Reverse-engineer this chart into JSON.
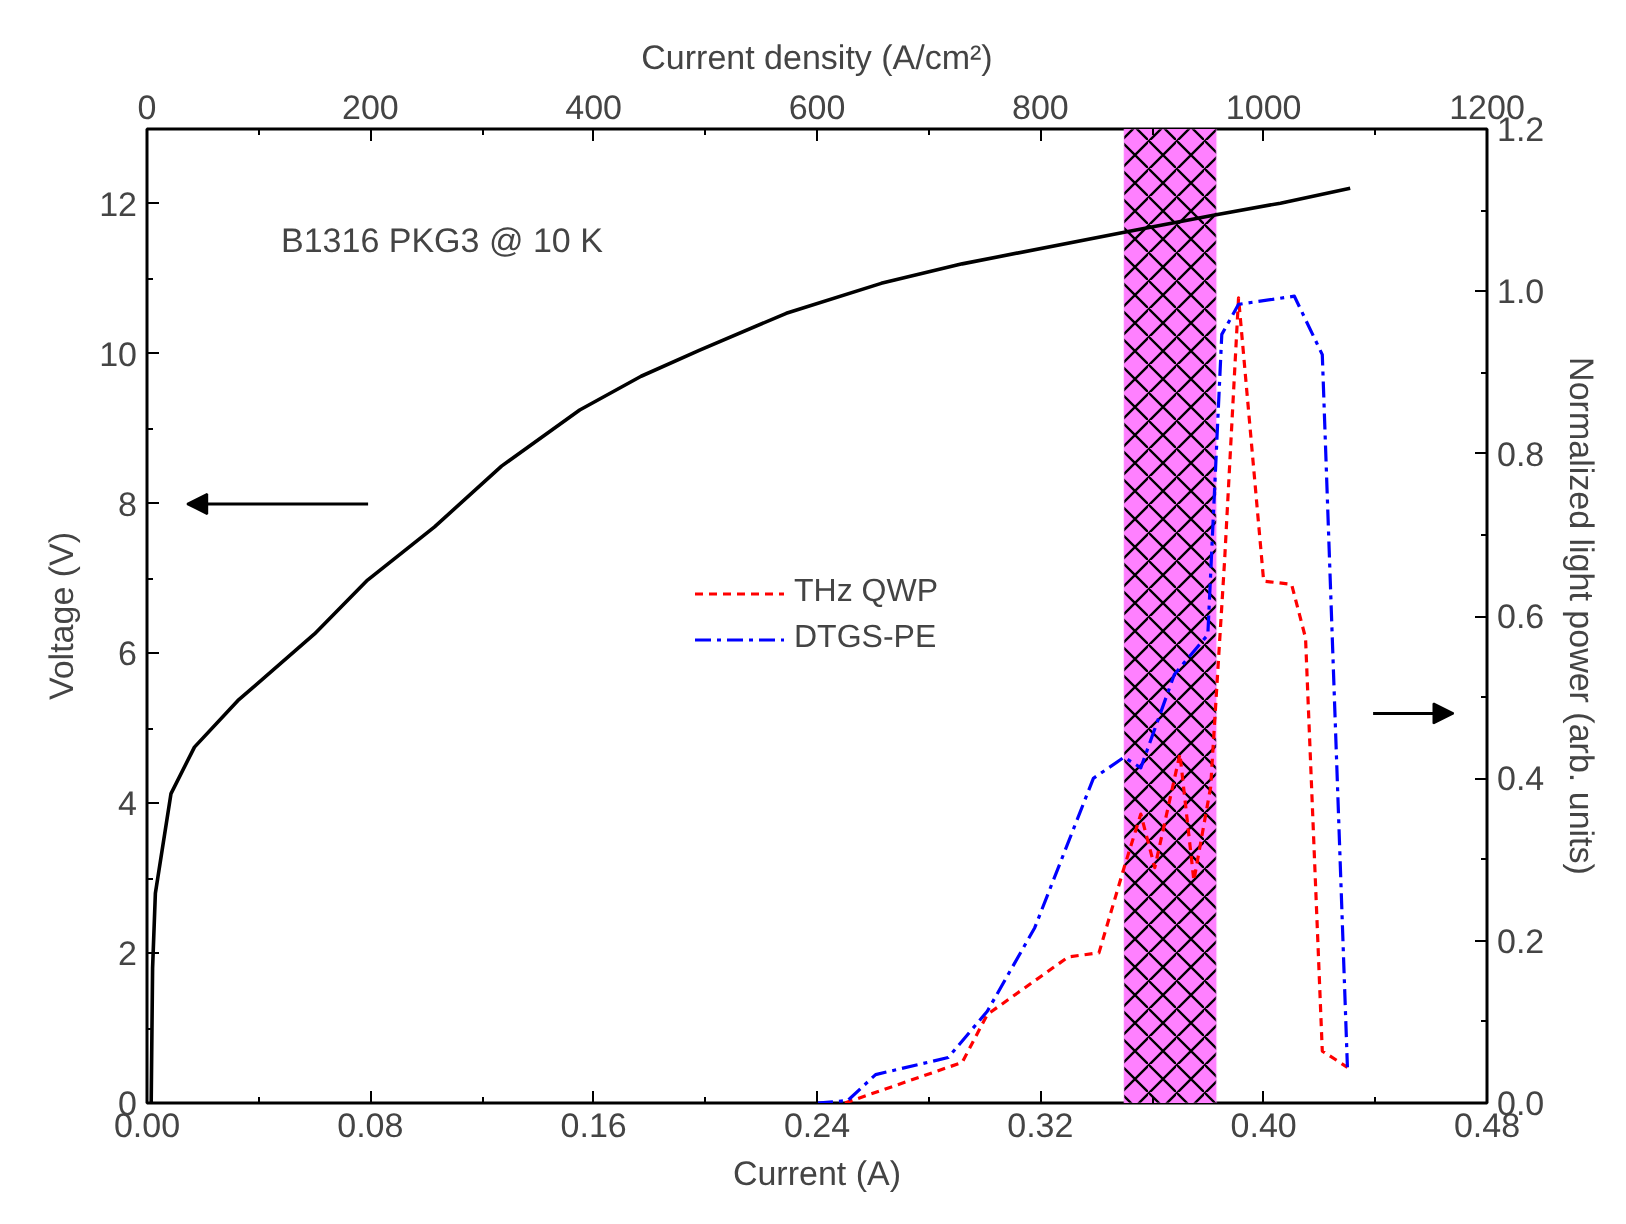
{
  "chart_data": {
    "type": "line",
    "xlabel": "Current (A)",
    "ylabel": "Voltage (V)",
    "y2label": "Normalized light power (arb. units)",
    "x2label": "Current density (A/cm²)",
    "xlim": [
      0,
      0.48
    ],
    "xticks": [
      {
        "value": 0,
        "label": "0.00"
      },
      {
        "value": 0.04,
        "label": null
      },
      {
        "value": 0.08,
        "label": "0.08"
      },
      {
        "value": 0.12,
        "label": null
      },
      {
        "value": 0.16,
        "label": "0.16"
      },
      {
        "value": 0.2,
        "label": null
      },
      {
        "value": 0.24,
        "label": "0.24"
      },
      {
        "value": 0.28,
        "label": null
      },
      {
        "value": 0.32,
        "label": "0.32"
      },
      {
        "value": 0.36,
        "label": null
      },
      {
        "value": 0.4,
        "label": "0.40"
      },
      {
        "value": 0.44,
        "label": null
      },
      {
        "value": 0.48,
        "label": "0.48"
      }
    ],
    "ylim": [
      0,
      13
    ],
    "yticks": [
      0,
      {
        "value": 1,
        "label": null
      },
      2,
      {
        "value": 3,
        "label": null
      },
      4,
      {
        "value": 5,
        "label": null
      },
      6,
      {
        "value": 7,
        "label": null
      },
      8,
      {
        "value": 9,
        "label": null
      },
      10,
      {
        "value": 11,
        "label": null
      },
      12
    ],
    "y2lim": [
      0,
      1.2
    ],
    "y2ticks": [
      {
        "value": 0,
        "label": "0.0"
      },
      {
        "value": 0.1,
        "label": null
      },
      {
        "value": 0.2,
        "label": "0.2"
      },
      {
        "value": 0.3,
        "label": null
      },
      {
        "value": 0.4,
        "label": "0.4"
      },
      {
        "value": 0.5,
        "label": null
      },
      {
        "value": 0.6,
        "label": "0.6"
      },
      {
        "value": 0.7,
        "label": null
      },
      {
        "value": 0.8,
        "label": "0.8"
      },
      {
        "value": 0.9,
        "label": null
      },
      {
        "value": 1.0,
        "label": "1.0"
      },
      {
        "value": 1.1,
        "label": null
      },
      {
        "value": 1.2,
        "label": "1.2"
      }
    ],
    "x2lim": [
      0,
      1200
    ],
    "x2ticks": [
      0,
      {
        "value": 100,
        "label": null
      },
      200,
      {
        "value": 300,
        "label": null
      },
      400,
      {
        "value": 500,
        "label": null
      },
      600,
      {
        "value": 700,
        "label": null
      },
      800,
      {
        "value": 900,
        "label": null
      },
      1000,
      {
        "value": 1100,
        "label": null
      },
      1200
    ],
    "grid": false,
    "legend": "center",
    "annotations": [
      "B1316 PKG3 @ 10 K"
    ],
    "bands": [
      {
        "axis": "x",
        "from": 0.35,
        "to": 0.383,
        "color": "#ff80ff"
      }
    ],
    "series": [
      {
        "color": "#000000",
        "line_style": "solid",
        "x": [
          0.0015,
          0.002,
          0.003,
          0.0086,
          0.017,
          0.0325,
          0.06,
          0.079,
          0.103,
          0.127,
          0.155,
          0.177,
          0.198,
          0.229,
          0.263,
          0.292,
          0.351,
          0.382,
          0.406,
          0.431
        ],
        "values": [
          0,
          1.8,
          2.8,
          4.13,
          4.75,
          5.37,
          6.26,
          6.98,
          7.69,
          8.5,
          9.25,
          9.7,
          10.05,
          10.54,
          10.94,
          11.2,
          11.63,
          11.85,
          12.01,
          12.21
        ]
      },
      {
        "name": "THz QWP",
        "color": "#ff0000",
        "line_style": "dashed",
        "axis": "y2",
        "x": [
          0.25,
          0.292,
          0.301,
          0.33,
          0.341,
          0.35,
          0.356,
          0.361,
          0.37,
          0.375,
          0.381,
          0.386,
          0.391,
          0.4,
          0.41,
          0.415,
          0.421,
          0.43
        ],
        "values": [
          0,
          0.05,
          0.109,
          0.18,
          0.185,
          0.29,
          0.356,
          0.29,
          0.43,
          0.274,
          0.389,
          0.668,
          0.992,
          0.643,
          0.639,
          0.573,
          0.064,
          0.044
        ]
      },
      {
        "name": "DTGS-PE",
        "color": "#0000ff",
        "line_style": "dashdot",
        "axis": "y2",
        "x": [
          0.24,
          0.251,
          0.261,
          0.287,
          0.301,
          0.318,
          0.339,
          0.35,
          0.356,
          0.368,
          0.38,
          0.385,
          0.391,
          0.411,
          0.421,
          0.43
        ],
        "values": [
          0,
          0.003,
          0.035,
          0.056,
          0.113,
          0.216,
          0.4,
          0.426,
          0.413,
          0.528,
          0.577,
          0.947,
          0.984,
          0.994,
          0.922,
          0.044
        ]
      }
    ]
  }
}
